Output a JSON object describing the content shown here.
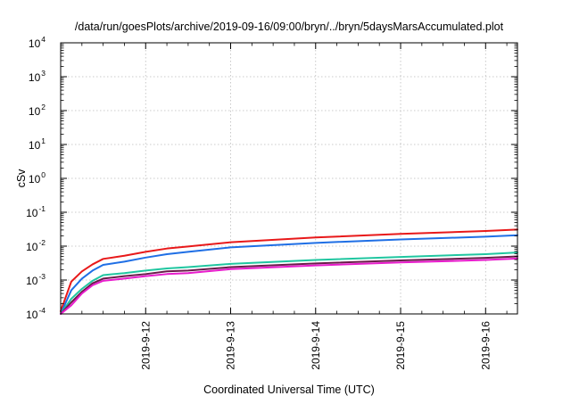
{
  "chart_data": {
    "type": "line",
    "title": "/data/run/goesPlots/archive/2019-09-16/09:00/bryn/../bryn/5daysMarsAccumulated.plot",
    "xlabel": "Coordinated Universal Time (UTC)",
    "ylabel": "cSv",
    "yscale": "log",
    "ylim": [
      0.0001,
      10000
    ],
    "xlim": [
      "2019-09-11 00:00",
      "2019-09-16 09:00"
    ],
    "grid": true,
    "legend": "none",
    "y_ticks": [
      {
        "base": "10",
        "exp": "-4"
      },
      {
        "base": "10",
        "exp": "-3"
      },
      {
        "base": "10",
        "exp": "-2"
      },
      {
        "base": "10",
        "exp": "-1"
      },
      {
        "base": "10",
        "exp": "0"
      },
      {
        "base": "10",
        "exp": "1"
      },
      {
        "base": "10",
        "exp": "2"
      },
      {
        "base": "10",
        "exp": "3"
      },
      {
        "base": "10",
        "exp": "4"
      }
    ],
    "x_ticks": [
      "2019-9-12",
      "2019-9-13",
      "2019-9-14",
      "2019-9-15",
      "2019-9-16"
    ],
    "x": [
      "2019-09-11 00:00",
      "2019-09-11 03:00",
      "2019-09-11 06:00",
      "2019-09-11 09:00",
      "2019-09-11 12:00",
      "2019-09-11 18:00",
      "2019-09-12 00:00",
      "2019-09-12 06:00",
      "2019-09-12 12:00",
      "2019-09-13 00:00",
      "2019-09-14 00:00",
      "2019-09-15 00:00",
      "2019-09-16 00:00",
      "2019-09-16 09:00"
    ],
    "series": [
      {
        "color": "#e8191a",
        "values": [
          0.00012,
          0.0009,
          0.0018,
          0.0029,
          0.0042,
          0.0052,
          0.0068,
          0.0085,
          0.0098,
          0.013,
          0.018,
          0.023,
          0.028,
          0.031
        ]
      },
      {
        "color": "#1f6fe5",
        "values": [
          0.0001,
          0.0005,
          0.0011,
          0.0019,
          0.0028,
          0.0035,
          0.0046,
          0.0058,
          0.0068,
          0.0092,
          0.0125,
          0.0158,
          0.019,
          0.021
        ]
      },
      {
        "color": "#20c6a0",
        "values": [
          0.0001,
          0.00028,
          0.00055,
          0.00095,
          0.0014,
          0.0016,
          0.0019,
          0.0022,
          0.0024,
          0.003,
          0.0039,
          0.0048,
          0.0058,
          0.0065
        ]
      },
      {
        "color": "#6a1b4a",
        "values": [
          0.0001,
          0.00022,
          0.00045,
          0.0008,
          0.0011,
          0.0013,
          0.0015,
          0.0018,
          0.0019,
          0.0024,
          0.0031,
          0.0038,
          0.0045,
          0.005
        ]
      },
      {
        "color": "#e81ccc",
        "values": [
          0.0001,
          0.00018,
          0.0004,
          0.0007,
          0.00095,
          0.0011,
          0.0013,
          0.0015,
          0.0016,
          0.0021,
          0.0027,
          0.0033,
          0.0039,
          0.0043
        ]
      }
    ]
  }
}
